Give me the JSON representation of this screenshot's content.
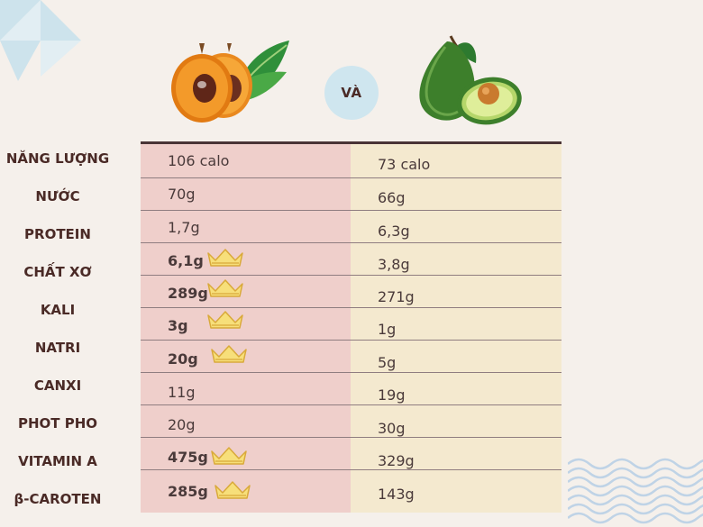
{
  "center_badge": "VÀ",
  "rows": [
    {
      "label": "NĂNG LƯỢNG",
      "left": "106 calo",
      "right": "73 calo",
      "left_winner": false
    },
    {
      "label": "NƯỚC",
      "left": "70g",
      "right": "66g",
      "left_winner": false
    },
    {
      "label": "PROTEIN",
      "left": "1,7g",
      "right": "6,3g",
      "left_winner": false
    },
    {
      "label": "CHẤT XƠ",
      "left": "6,1g",
      "right": "3,8g",
      "left_winner": true
    },
    {
      "label": "KALI",
      "left": "289g",
      "right": "271g",
      "left_winner": true
    },
    {
      "label": "NATRI",
      "left": "3g",
      "right": "1g",
      "left_winner": true
    },
    {
      "label": "CANXI",
      "left": "20g",
      "right": "5g",
      "left_winner": true
    },
    {
      "label": "PHOT PHO",
      "left": "11g",
      "right": "19g",
      "left_winner": false
    },
    {
      "label": "VITAMIN A",
      "left": "20g",
      "right": "30g",
      "left_winner": false
    },
    {
      "label": "β-CAROTEN",
      "left": "475g",
      "right": "329g",
      "left_winner": true
    },
    {
      "label": "",
      "left": "285g",
      "right": "143g",
      "left_winner": true
    }
  ],
  "icons": {
    "left_fruit": "loquat-icon",
    "right_fruit": "avocado-icon",
    "winner_mark": "crown-icon"
  },
  "colors": {
    "left_column": "#efcfcb",
    "right_column": "#f4e9cf",
    "crown": "#f7df7a",
    "badge": "#cfe6ef"
  }
}
